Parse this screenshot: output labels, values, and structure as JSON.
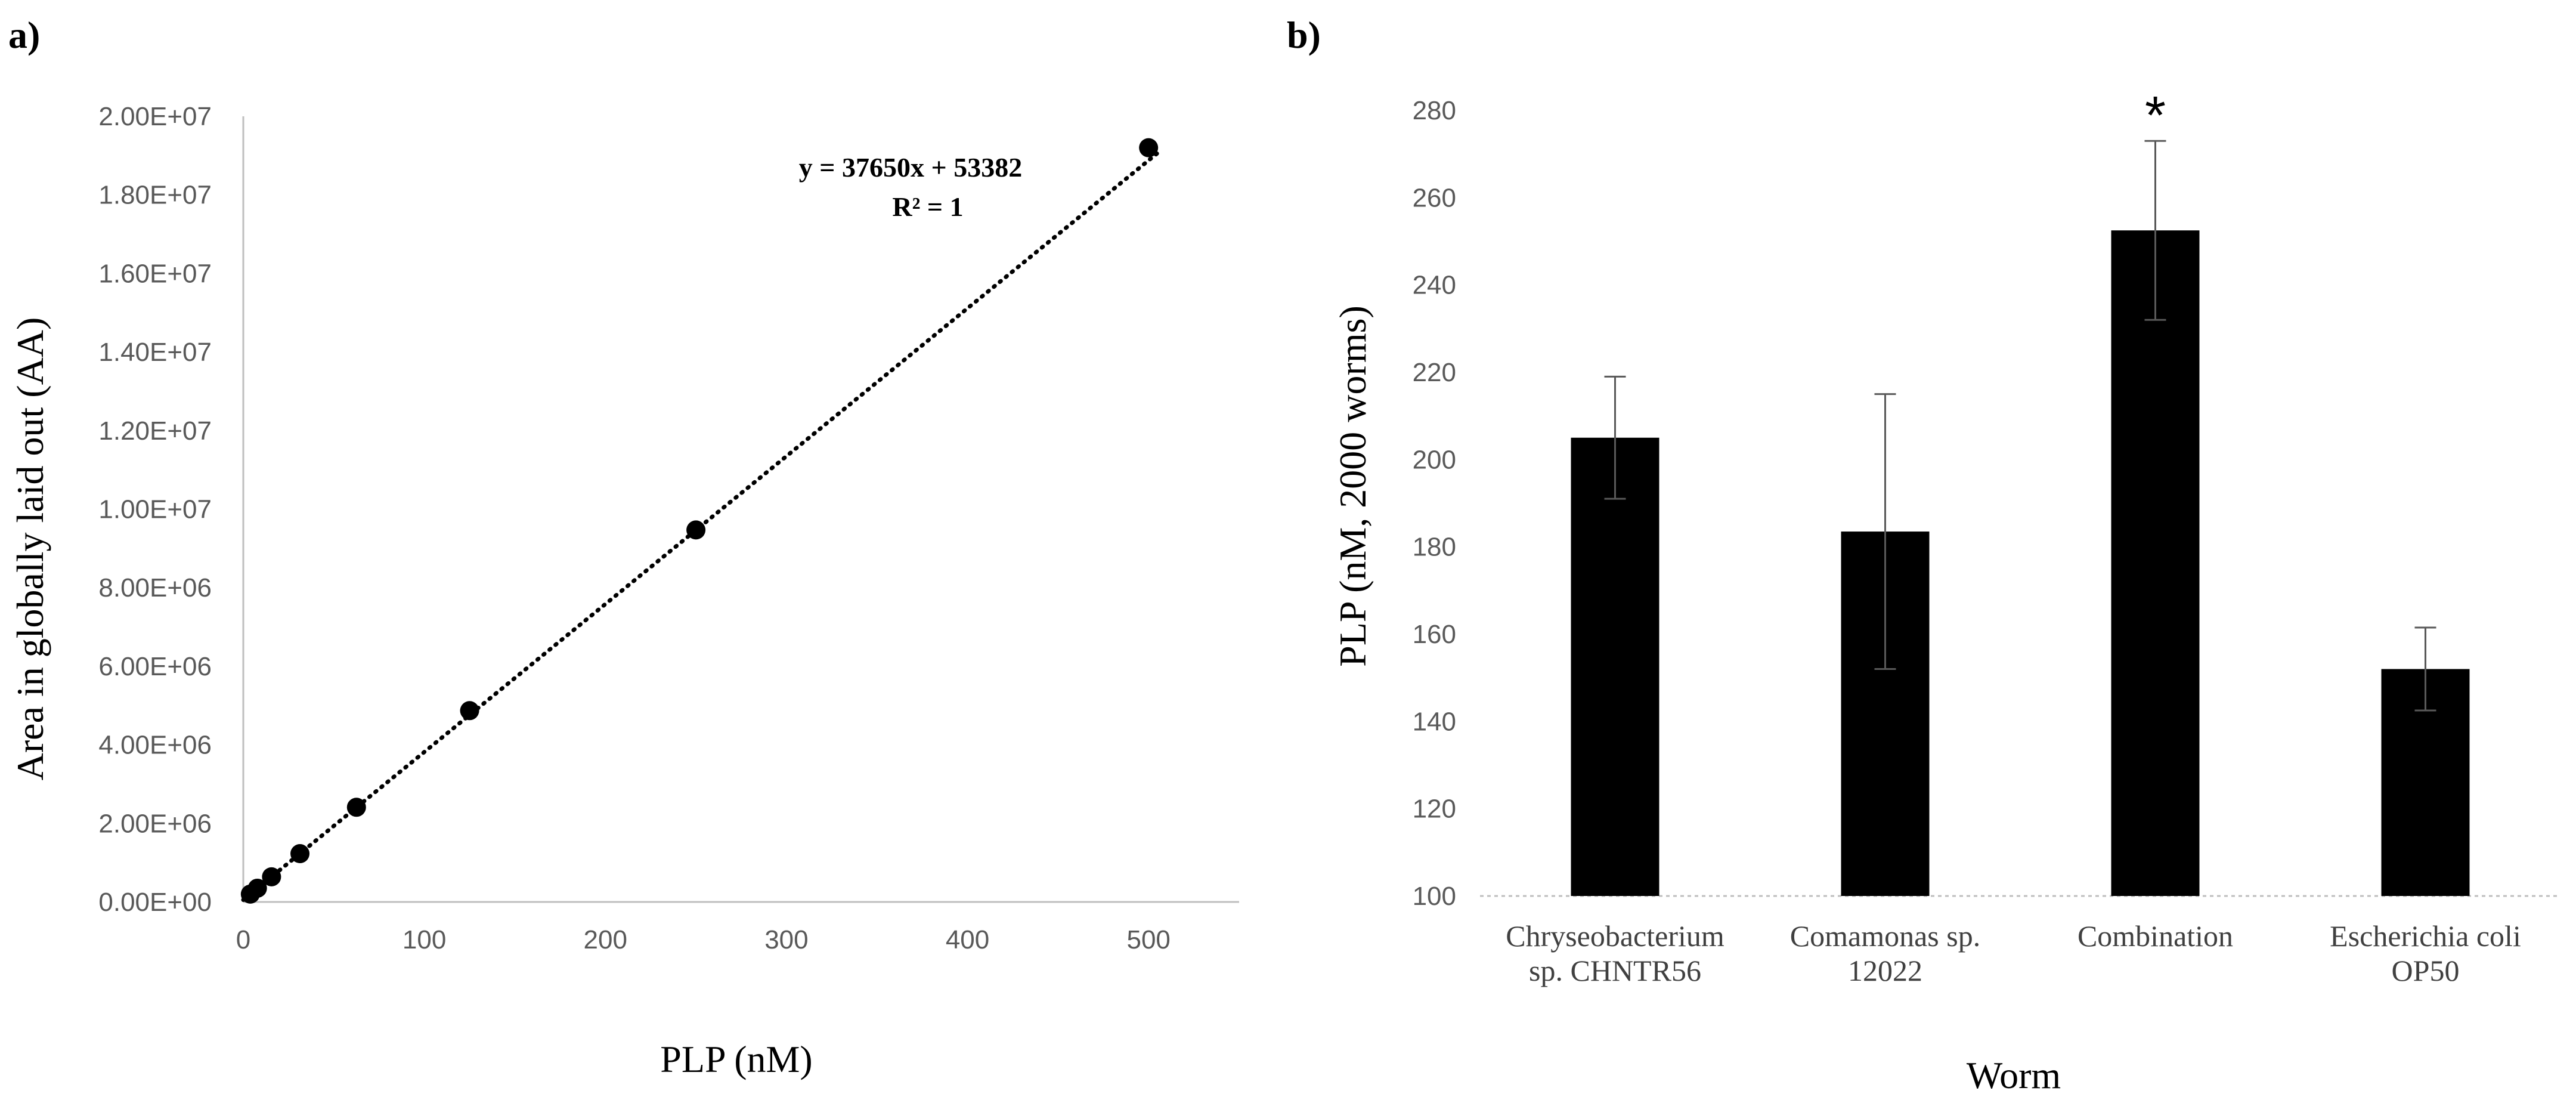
{
  "chart_data": [
    {
      "panel_label": "a)",
      "type": "scatter",
      "xlabel": "PLP (nM)",
      "ylabel": "Area in globally laid out (AA)",
      "xlim": [
        0,
        550
      ],
      "ylim": [
        0,
        20000000
      ],
      "x_ticks": [
        "0",
        "100",
        "200",
        "300",
        "400",
        "500"
      ],
      "x_tick_values": [
        0,
        100,
        200,
        300,
        400,
        500
      ],
      "y_ticks": [
        "0.00E+00",
        "2.00E+06",
        "4.00E+06",
        "6.00E+06",
        "8.00E+06",
        "1.00E+07",
        "1.20E+07",
        "1.40E+07",
        "1.60E+07",
        "1.80E+07",
        "2.00E+07"
      ],
      "y_tick_values": [
        0,
        2000000,
        4000000,
        6000000,
        8000000,
        10000000,
        12000000,
        14000000,
        16000000,
        18000000,
        20000000
      ],
      "points": [
        {
          "x": 3.9,
          "y": 200000
        },
        {
          "x": 7.8,
          "y": 350000
        },
        {
          "x": 15.6,
          "y": 640000
        },
        {
          "x": 31.3,
          "y": 1230000
        },
        {
          "x": 62.5,
          "y": 2410000
        },
        {
          "x": 125,
          "y": 4870000
        },
        {
          "x": 250,
          "y": 9470000
        },
        {
          "x": 500,
          "y": 19200000
        }
      ],
      "trendline": {
        "slope": 37650,
        "intercept": 53382,
        "x_range": [
          0,
          505
        ],
        "style": "dotted"
      },
      "equation": "y = 37650x + 53382",
      "r_squared": "R² = 1"
    },
    {
      "panel_label": "b)",
      "type": "bar",
      "xlabel": "Worm",
      "ylabel": "PLP (nM, 2000 worms)",
      "ylim": [
        100,
        280
      ],
      "y_ticks": [
        "100",
        "120",
        "140",
        "160",
        "180",
        "200",
        "220",
        "240",
        "260",
        "280"
      ],
      "y_tick_values": [
        100,
        120,
        140,
        160,
        180,
        200,
        220,
        240,
        260,
        280
      ],
      "categories": [
        [
          "Chryseobacterium",
          "sp. CHNTR56"
        ],
        [
          "Comamonas sp.",
          "12022"
        ],
        [
          "Combination"
        ],
        [
          "Escherichia coli",
          "OP50"
        ]
      ],
      "values": [
        205,
        183.5,
        252.5,
        152
      ],
      "errors": [
        14,
        31.5,
        20.5,
        9.5
      ],
      "annotations": [
        {
          "category_index": 2,
          "text": "*"
        }
      ],
      "bar_color": "#000000"
    }
  ]
}
